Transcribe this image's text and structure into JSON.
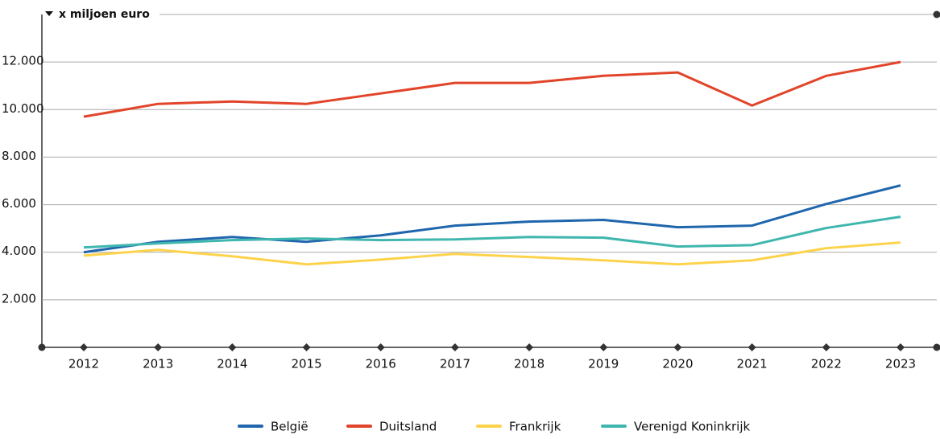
{
  "chart_data": {
    "type": "line",
    "y_label": "x miljoen euro",
    "categories": [
      "2012",
      "2013",
      "2014",
      "2015",
      "2016",
      "2017",
      "2018",
      "2019",
      "2020",
      "2021",
      "2022",
      "2023"
    ],
    "series": [
      {
        "name": "België",
        "color": "#1f66ad",
        "values": [
          4000,
          4440,
          4640,
          4440,
          4710,
          5120,
          5290,
          5360,
          5050,
          5120,
          6030,
          6810
        ]
      },
      {
        "name": "Duitsland",
        "color": "#e2442a",
        "values": [
          9700,
          10240,
          10340,
          10240,
          10680,
          11120,
          11120,
          11420,
          11560,
          10170,
          11420,
          12000
        ]
      },
      {
        "name": "Frankrijk",
        "color": "#fdd34c",
        "values": [
          3860,
          4100,
          3830,
          3490,
          3690,
          3930,
          3800,
          3660,
          3490,
          3660,
          4170,
          4410
        ]
      },
      {
        "name": "Verenigd Koninkrijk",
        "color": "#3fb6ae",
        "values": [
          4200,
          4370,
          4510,
          4580,
          4510,
          4540,
          4640,
          4610,
          4240,
          4300,
          5020,
          5490
        ]
      }
    ],
    "ylim": [
      0,
      14000
    ],
    "yticks": [
      {
        "value": 2000,
        "label": "2.000"
      },
      {
        "value": 4000,
        "label": "4.000"
      },
      {
        "value": 6000,
        "label": "6.000"
      },
      {
        "value": 8000,
        "label": "8.000"
      },
      {
        "value": 10000,
        "label": "10.000"
      },
      {
        "value": 12000,
        "label": "12.000"
      }
    ],
    "grid": true
  }
}
